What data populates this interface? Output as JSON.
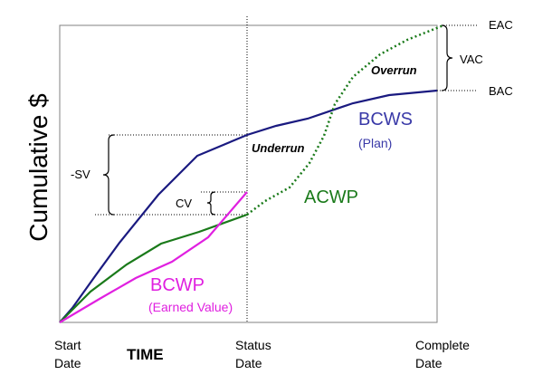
{
  "y_axis_label": "Cumulative $",
  "x_axis_title": "TIME",
  "x_ticks": {
    "start": [
      "Start",
      "Date"
    ],
    "status": [
      "Status",
      "Date"
    ],
    "complete": [
      "Complete",
      "Date"
    ]
  },
  "labels": {
    "eac": "EAC",
    "bac": "BAC",
    "vac": "VAC",
    "overrun": "Overrun",
    "underrun": "Underrun",
    "sv": "-SV",
    "cv": "CV",
    "bcws": "BCWS",
    "bcws_sub": "(Plan)",
    "acwp": "ACWP",
    "bcwp": "BCWP",
    "bcwp_sub": "(Earned Value)"
  },
  "colors": {
    "bcws": "#1a1a80",
    "bcws_text": "#3a3aa8",
    "acwp": "#1a7a1a",
    "bcwp": "#e020e0",
    "axis": "#808080",
    "text": "#000000"
  }
}
